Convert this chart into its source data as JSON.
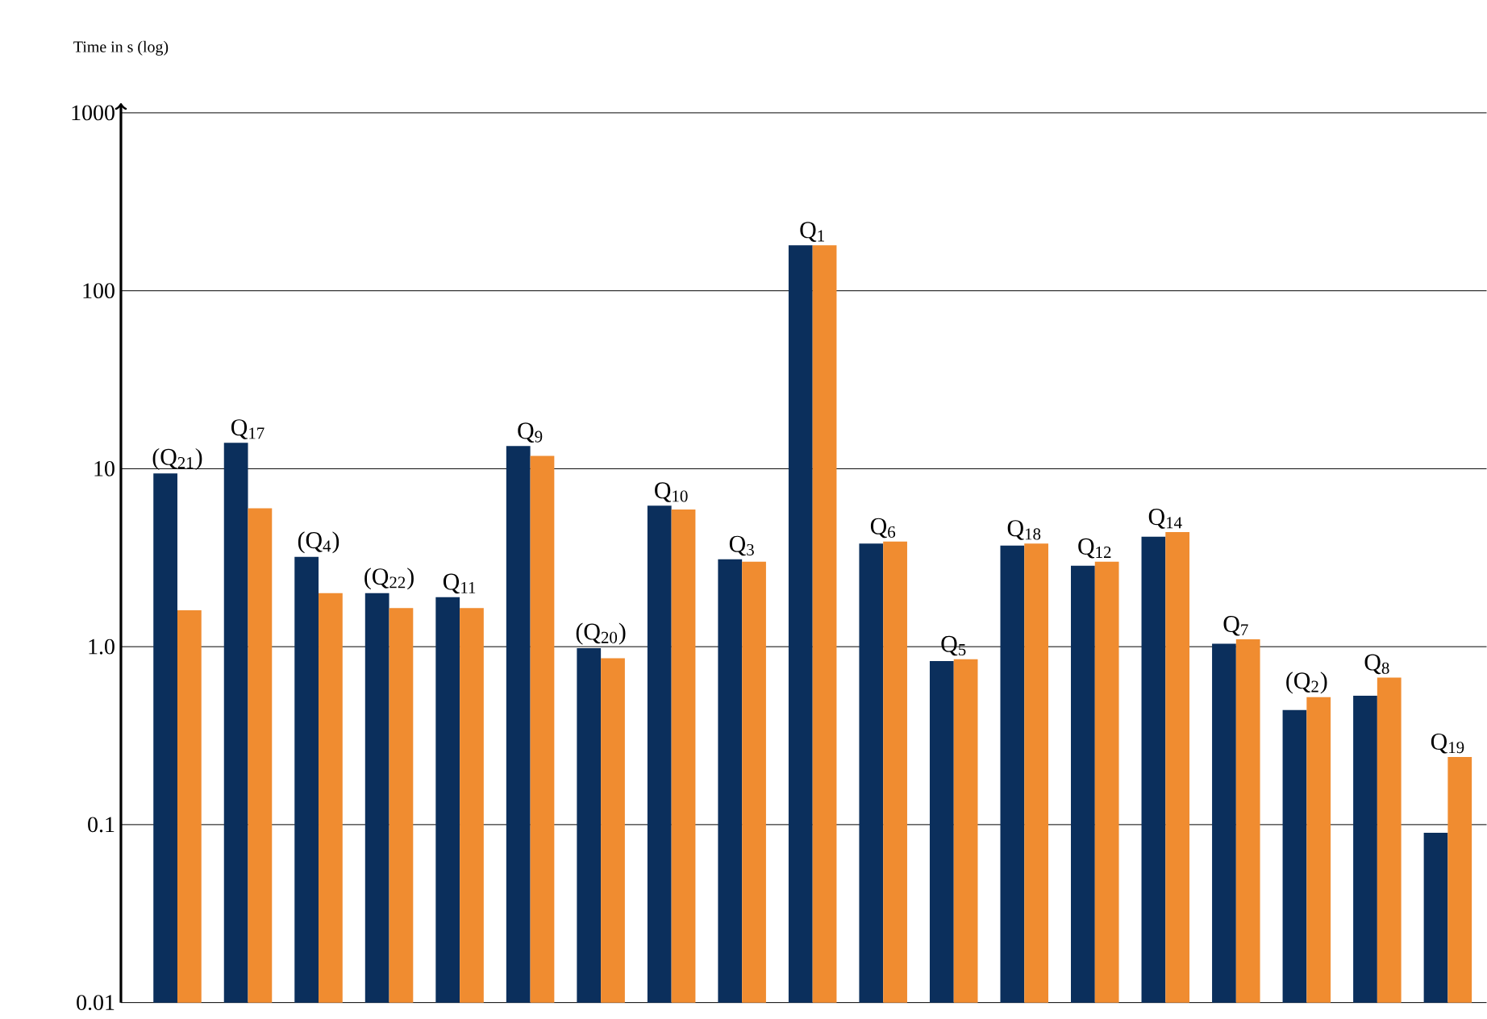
{
  "chart_data": {
    "type": "bar",
    "ylabel": "Time in s (log)",
    "log": true,
    "grid": "y",
    "categories": [
      "(Q$_{21}$)",
      "Q$_{17}$",
      "(Q$_{4}$)",
      "(Q$_{22}$)",
      "Q$_{11}$",
      "Q$_{9}$",
      "(Q$_{20}$)",
      "Q$_{10}$",
      "Q$_{3}$",
      "Q$_{1}$",
      "Q$_{6}$",
      "Q$_{5}$",
      "Q$_{18}$",
      "Q$_{12}$",
      "Q$_{14}$",
      "Q$_{7}$",
      "(Q$_{2}$)",
      "Q$_{8}$",
      "Q$_{19}$"
    ],
    "series": [
      {
        "color": "#0b2f5c",
        "values": [
          9.4,
          14,
          3.2,
          2.0,
          1.9,
          13.4,
          0.98,
          6.2,
          3.1,
          180,
          3.8,
          0.83,
          3.7,
          2.85,
          4.15,
          1.04,
          0.44,
          0.53,
          0.09
        ]
      },
      {
        "color": "#f08c30",
        "values": [
          1.6,
          6.0,
          2.0,
          1.65,
          1.65,
          11.8,
          0.86,
          5.9,
          3.0,
          180,
          3.9,
          0.85,
          3.8,
          3.0,
          4.4,
          1.1,
          0.52,
          0.67,
          0.24
        ]
      }
    ],
    "ylim": [
      0.01,
      1000
    ],
    "yticks": [
      {
        "value": 0.01,
        "label": "0.01"
      },
      {
        "value": 0.1,
        "label": "0.1"
      },
      {
        "value": 1,
        "label": "1.0"
      },
      {
        "value": 10,
        "label": "10"
      },
      {
        "value": 100,
        "label": "100"
      },
      {
        "value": 1000,
        "label": "1000"
      }
    ]
  }
}
